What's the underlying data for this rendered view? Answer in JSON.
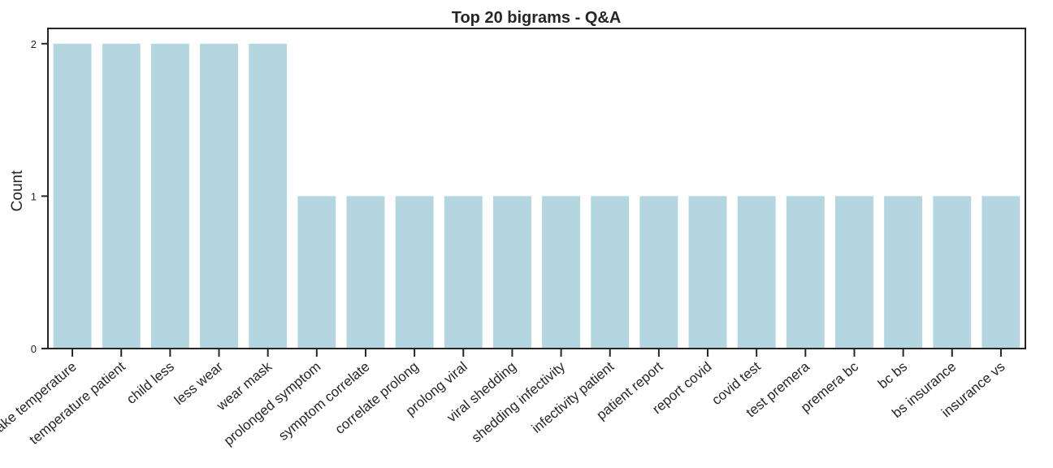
{
  "chart_data": {
    "type": "bar",
    "title": "Top 20 bigrams - Q&A",
    "xlabel": "",
    "ylabel": "Count",
    "ylim": [
      0,
      2.1
    ],
    "yticks": [
      0,
      1,
      2
    ],
    "grid": false,
    "bar_color": "#b3d6e0",
    "categories": [
      "take temperature",
      "temperature patient",
      "child less",
      "less wear",
      "wear mask",
      "prolonged symptom",
      "symptom correlate",
      "correlate prolong",
      "prolong viral",
      "viral shedding",
      "shedding infectivity",
      "infectivity patient",
      "patient report",
      "report covid",
      "covid test",
      "test premera",
      "premera bc",
      "bc bs",
      "bs insurance",
      "insurance vs"
    ],
    "values": [
      2,
      2,
      2,
      2,
      2,
      1,
      1,
      1,
      1,
      1,
      1,
      1,
      1,
      1,
      1,
      1,
      1,
      1,
      1,
      1
    ]
  }
}
